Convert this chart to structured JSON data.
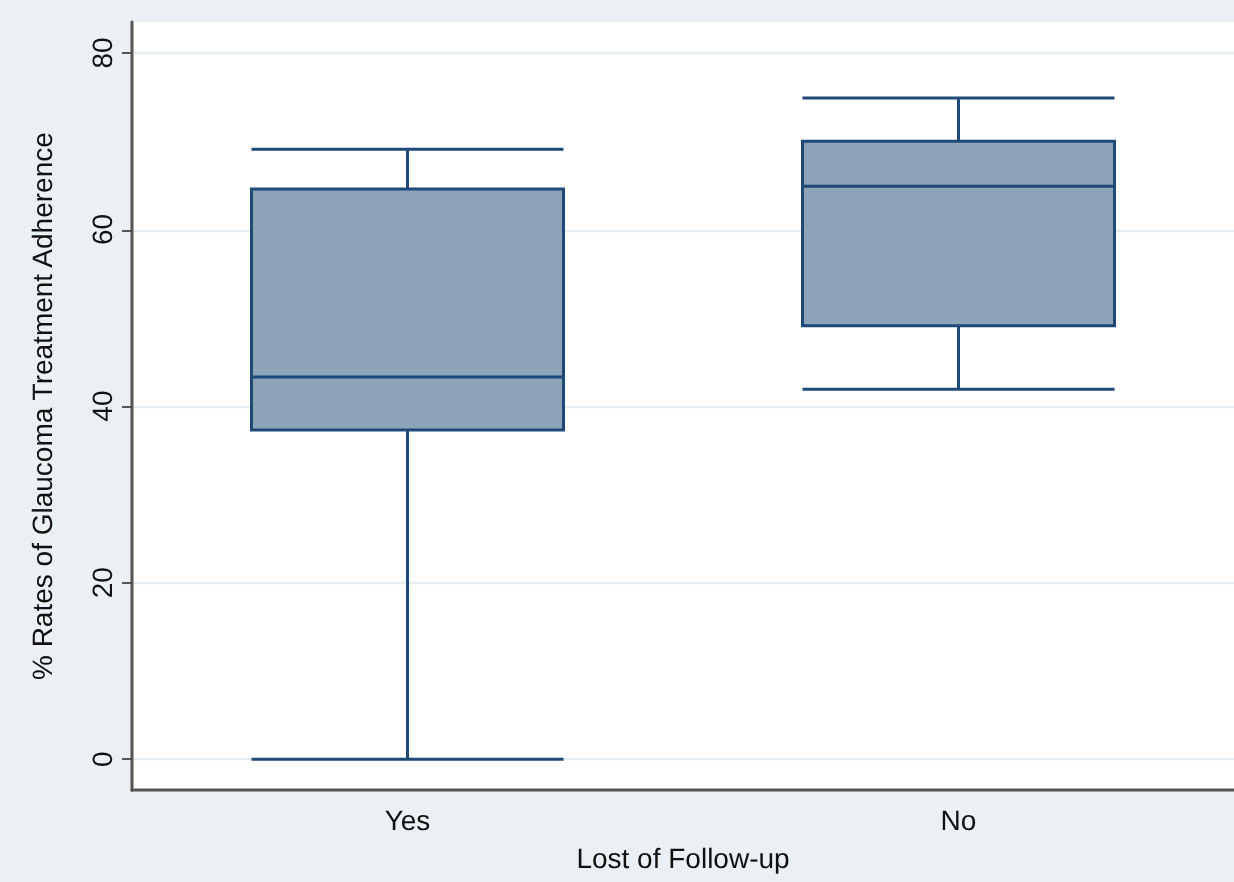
{
  "chart_data": {
    "type": "box",
    "xlabel": "Lost of Follow-up",
    "ylabel": "% Rates of Glaucoma Treatment Adherence",
    "categories": [
      "Yes",
      "No"
    ],
    "series": [
      {
        "color": "#8ca3b8",
        "boxes": [
          {
            "low": 0,
            "q1": 37.3,
            "median": 43.3,
            "q3": 64.6,
            "high": 69.1
          },
          {
            "low": 41.9,
            "q1": 49.1,
            "median": 64.9,
            "q3": 70.0,
            "high": 74.9
          }
        ]
      }
    ],
    "ylim": [
      -3.5,
      83.5
    ],
    "yticks": [
      0,
      20,
      40,
      60,
      80
    ],
    "grid": "y"
  }
}
